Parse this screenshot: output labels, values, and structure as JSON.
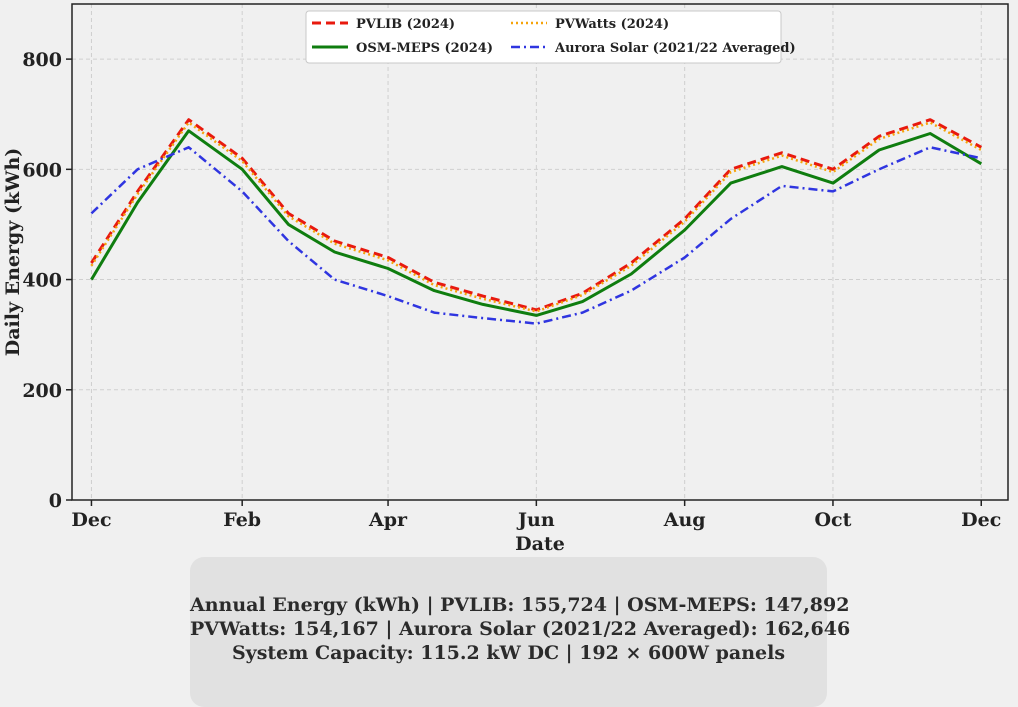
{
  "chart_data": {
    "type": "line",
    "xlabel": "Date",
    "ylabel": "Daily Energy (kWh)",
    "x_tick_labels": [
      "Dec",
      "Feb",
      "Apr",
      "Jun",
      "Aug",
      "Oct",
      "Dec"
    ],
    "x_tick_dates": [
      "2023-12-01",
      "2024-02-01",
      "2024-04-01",
      "2024-06-01",
      "2024-08-01",
      "2024-10-01",
      "2024-12-01"
    ],
    "x_range": [
      "2023-11-23",
      "2024-12-12"
    ],
    "y_ticks": [
      0,
      200,
      400,
      600,
      800
    ],
    "ylim": [
      0,
      900
    ],
    "grid": true,
    "legend_placement": "top-center",
    "series": [
      {
        "name": "PVLIB (2024)",
        "color": "#e8190e",
        "style": "dashed",
        "x": [
          "2023-12-01",
          "2023-12-20",
          "2024-01-10",
          "2024-02-01",
          "2024-02-20",
          "2024-03-10",
          "2024-04-01",
          "2024-04-20",
          "2024-05-10",
          "2024-06-01",
          "2024-06-20",
          "2024-07-10",
          "2024-08-01",
          "2024-08-20",
          "2024-09-10",
          "2024-10-01",
          "2024-10-20",
          "2024-11-10",
          "2024-12-01"
        ],
        "y": [
          430,
          560,
          690,
          620,
          520,
          470,
          440,
          395,
          370,
          345,
          375,
          430,
          510,
          600,
          630,
          600,
          660,
          690,
          640
        ]
      },
      {
        "name": "OSM-MEPS (2024)",
        "color": "#0f7d0f",
        "style": "solid",
        "x": [
          "2023-12-01",
          "2023-12-20",
          "2024-01-10",
          "2024-02-01",
          "2024-02-20",
          "2024-03-10",
          "2024-04-01",
          "2024-04-20",
          "2024-05-10",
          "2024-06-01",
          "2024-06-20",
          "2024-07-10",
          "2024-08-01",
          "2024-08-20",
          "2024-09-10",
          "2024-10-01",
          "2024-10-20",
          "2024-11-10",
          "2024-12-01"
        ],
        "y": [
          400,
          540,
          670,
          600,
          500,
          450,
          420,
          380,
          355,
          335,
          360,
          410,
          490,
          575,
          605,
          575,
          635,
          665,
          610
        ]
      },
      {
        "name": "PVWatts (2024)",
        "color": "#f5a30a",
        "style": "dotted",
        "x": [
          "2023-12-01",
          "2023-12-20",
          "2024-01-10",
          "2024-02-01",
          "2024-02-20",
          "2024-03-10",
          "2024-04-01",
          "2024-04-20",
          "2024-05-10",
          "2024-06-01",
          "2024-06-20",
          "2024-07-10",
          "2024-08-01",
          "2024-08-20",
          "2024-09-10",
          "2024-10-01",
          "2024-10-20",
          "2024-11-10",
          "2024-12-01"
        ],
        "y": [
          425,
          555,
          685,
          615,
          515,
          465,
          435,
          390,
          365,
          342,
          372,
          425,
          505,
          595,
          625,
          595,
          655,
          685,
          635
        ]
      },
      {
        "name": "Aurora Solar (2021/22 Averaged)",
        "color": "#2f35e0",
        "style": "dashdot",
        "x": [
          "2023-12-01",
          "2023-12-20",
          "2024-01-10",
          "2024-02-01",
          "2024-02-20",
          "2024-03-10",
          "2024-04-01",
          "2024-04-20",
          "2024-05-10",
          "2024-06-01",
          "2024-06-20",
          "2024-07-10",
          "2024-08-01",
          "2024-08-20",
          "2024-09-10",
          "2024-10-01",
          "2024-10-20",
          "2024-11-10",
          "2024-12-01"
        ],
        "y": [
          520,
          600,
          640,
          560,
          470,
          400,
          370,
          340,
          330,
          320,
          340,
          380,
          440,
          510,
          570,
          560,
          600,
          640,
          620
        ]
      }
    ]
  },
  "summary": {
    "line1": "Annual Energy (kWh) | PVLIB: 155,724 | OSM-MEPS: 147,892",
    "line2": "PVWatts: 154,167 | Aurora Solar (2021/22 Averaged): 162,646",
    "line3": "System Capacity: 115.2 kW DC | 192 × 600W panels"
  }
}
